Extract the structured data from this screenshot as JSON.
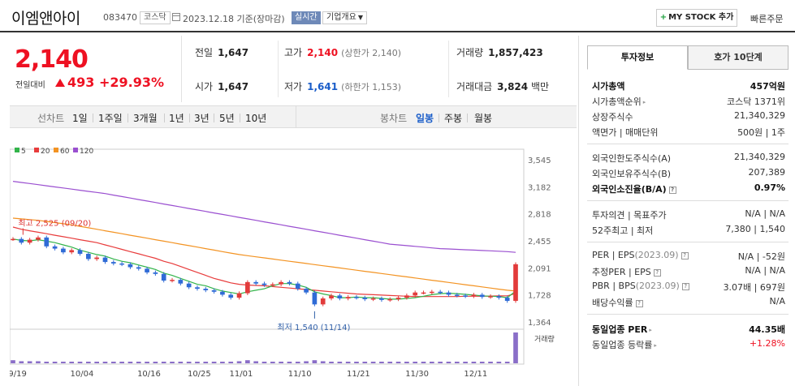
{
  "header": {
    "title": "이엠앤아이",
    "code": "083470",
    "market": "코스닥",
    "date_label": "2023.12.18 기준(장마감)",
    "realtime": "실시간",
    "company_info": "기업개요",
    "mystock_plus": "+",
    "mystock_label": "MY STOCK 추가",
    "quick_order": "빠른주문"
  },
  "price": {
    "current": "2,140",
    "change_label": "전일대비",
    "change_value": "493",
    "change_pct": "+29.93%"
  },
  "stats": {
    "prev_close_label": "전일",
    "prev_close": "1,647",
    "high_label": "고가",
    "high": "2,140",
    "high_limit": "(상한가 2,140)",
    "volume_label": "거래량",
    "volume": "1,857,423",
    "open_label": "시가",
    "open": "1,647",
    "low_label": "저가",
    "low": "1,641",
    "low_limit": "(하한가 1,153)",
    "amount_label": "거래대금",
    "amount": "3,824",
    "amount_unit": "백만"
  },
  "period_bar": {
    "line_label": "선차트",
    "line_periods": [
      "1일",
      "1주일",
      "3개월",
      "1년",
      "3년",
      "5년",
      "10년"
    ],
    "candle_label": "봉차트",
    "candle_periods": [
      "일봉",
      "주봉",
      "월봉"
    ],
    "active_candle": "일봉"
  },
  "chart_data": {
    "type": "candlestick",
    "legend": [
      {
        "name": "5",
        "color": "#32b44a"
      },
      {
        "name": "20",
        "color": "#e83c3c"
      },
      {
        "name": "60",
        "color": "#f39322"
      },
      {
        "name": "120",
        "color": "#9a4fd0"
      }
    ],
    "y_ticks": [
      3545,
      3182,
      2818,
      2455,
      2091,
      1728,
      1364
    ],
    "y_tick_labels": [
      "3,545",
      "3,182",
      "2,818",
      "2,455",
      "2,091",
      "1,728",
      "1,364"
    ],
    "ylim": [
      1364,
      3545
    ],
    "x_labels": [
      "09/19",
      "10/04",
      "10/16",
      "10/25",
      "11/01",
      "11/10",
      "11/21",
      "11/30",
      "12/11"
    ],
    "x_label_idx": [
      0,
      8,
      16,
      22,
      27,
      34,
      41,
      48,
      55
    ],
    "high_annotation": "최고 2,525 (09/20)",
    "high_value": 2525,
    "high_idx": 1,
    "low_annotation": "최저 1,540 (11/14)",
    "low_value": 1540,
    "low_idx": 36,
    "volume_label": "거래량",
    "close": [
      2480,
      2430,
      2470,
      2500,
      2380,
      2350,
      2300,
      2330,
      2280,
      2210,
      2230,
      2170,
      2150,
      2140,
      2100,
      2080,
      2030,
      2010,
      1920,
      1930,
      1880,
      1830,
      1810,
      1790,
      1770,
      1730,
      1690,
      1750,
      1900,
      1880,
      1860,
      1870,
      1900,
      1880,
      1810,
      1760,
      1600,
      1680,
      1720,
      1680,
      1700,
      1690,
      1670,
      1680,
      1660,
      1670,
      1690,
      1720,
      1760,
      1760,
      1770,
      1760,
      1730,
      1720,
      1710,
      1730,
      1700,
      1710,
      1690,
      1647,
      2140
    ],
    "ma5": [
      2480,
      2460,
      2455,
      2470,
      2450,
      2430,
      2400,
      2370,
      2330,
      2300,
      2270,
      2250,
      2210,
      2180,
      2160,
      2130,
      2100,
      2070,
      2020,
      1990,
      1950,
      1910,
      1870,
      1850,
      1810,
      1780,
      1760,
      1740,
      1770,
      1790,
      1810,
      1850,
      1880,
      1880,
      1860,
      1830,
      1770,
      1740,
      1720,
      1690,
      1690,
      1700,
      1690,
      1690,
      1680,
      1670,
      1670,
      1680,
      1690,
      1710,
      1730,
      1745,
      1750,
      1745,
      1735,
      1725,
      1715,
      1710,
      1705,
      1690,
      1780
    ],
    "ma20": [
      2640,
      2610,
      2590,
      2570,
      2550,
      2530,
      2510,
      2490,
      2470,
      2450,
      2430,
      2400,
      2370,
      2340,
      2310,
      2280,
      2250,
      2220,
      2180,
      2150,
      2110,
      2070,
      2030,
      1990,
      1950,
      1920,
      1890,
      1870,
      1860,
      1855,
      1850,
      1840,
      1830,
      1820,
      1810,
      1800,
      1790,
      1780,
      1770,
      1760,
      1750,
      1740,
      1735,
      1730,
      1725,
      1720,
      1715,
      1710,
      1705,
      1705,
      1705,
      1705,
      1705,
      1705,
      1710,
      1710,
      1710,
      1712,
      1714,
      1715,
      1745
    ],
    "ma60": [
      2760,
      2750,
      2740,
      2730,
      2715,
      2700,
      2685,
      2670,
      2650,
      2630,
      2610,
      2590,
      2570,
      2550,
      2530,
      2510,
      2490,
      2470,
      2450,
      2430,
      2410,
      2390,
      2370,
      2350,
      2330,
      2310,
      2290,
      2270,
      2255,
      2240,
      2225,
      2210,
      2195,
      2180,
      2165,
      2150,
      2135,
      2120,
      2105,
      2090,
      2075,
      2060,
      2045,
      2030,
      2015,
      2000,
      1985,
      1970,
      1955,
      1940,
      1925,
      1910,
      1895,
      1880,
      1865,
      1850,
      1835,
      1820,
      1805,
      1790,
      1780
    ],
    "ma120": [
      3255,
      3240,
      3225,
      3210,
      3195,
      3180,
      3165,
      3150,
      3135,
      3120,
      3105,
      3090,
      3070,
      3050,
      3030,
      3010,
      2990,
      2970,
      2950,
      2930,
      2910,
      2890,
      2870,
      2850,
      2830,
      2810,
      2790,
      2770,
      2750,
      2730,
      2710,
      2690,
      2670,
      2650,
      2630,
      2610,
      2590,
      2570,
      2550,
      2530,
      2510,
      2490,
      2470,
      2450,
      2430,
      2410,
      2400,
      2390,
      2380,
      2370,
      2360,
      2350,
      2345,
      2340,
      2335,
      2330,
      2325,
      2320,
      2315,
      2310,
      2300
    ],
    "volume": [
      3,
      2,
      2,
      2,
      1,
      1,
      1,
      1,
      1,
      1,
      1,
      1,
      1,
      1,
      1,
      1,
      1,
      1,
      1,
      1,
      1,
      1,
      1,
      1,
      1,
      1,
      1,
      2,
      3,
      2,
      1,
      1,
      1,
      1,
      1,
      2,
      3,
      2,
      1,
      1,
      1,
      1,
      1,
      1,
      1,
      1,
      1,
      1,
      1,
      1,
      1,
      1,
      1,
      1,
      1,
      1,
      1,
      1,
      1,
      1,
      30
    ]
  },
  "right_panel": {
    "tab_invest": "투자정보",
    "tab_orderbook": "호가 10단계",
    "market_cap_label": "시가총액",
    "market_cap": "457억원",
    "market_cap_rank_label": "시가총액순위",
    "market_cap_rank": "코스닥 1371위",
    "shares_label": "상장주식수",
    "shares": "21,340,329",
    "par_label": "액면가 | 매매단위",
    "par": "500원 | 1주",
    "foreign_limit_label": "외국인한도주식수(A)",
    "foreign_limit": "21,340,329",
    "foreign_hold_label": "외국인보유주식수(B)",
    "foreign_hold": "207,389",
    "foreign_ratio_label": "외국인소진율(B/A)",
    "foreign_ratio": "0.97%",
    "opinion_label": "투자의견 | 목표주가",
    "opinion": "N/A | N/A",
    "w52_label": "52주최고 | 최저",
    "w52": "7,380 | 1,540",
    "per_label": "PER | EPS",
    "per_year": "(2023.09)",
    "per": "N/A | -52원",
    "est_per_label": "추정PER | EPS",
    "est_per": "N/A | N/A",
    "pbr_label": "PBR | BPS",
    "pbr_year": "(2023.09)",
    "pbr": "3.07배 | 697원",
    "div_label": "배당수익률",
    "div": "N/A",
    "sector_per_label": "동일업종 PER",
    "sector_per": "44.35배",
    "sector_rate_label": "동일업종 등락률",
    "sector_rate": "+1.28%",
    "q_mark": "?"
  }
}
